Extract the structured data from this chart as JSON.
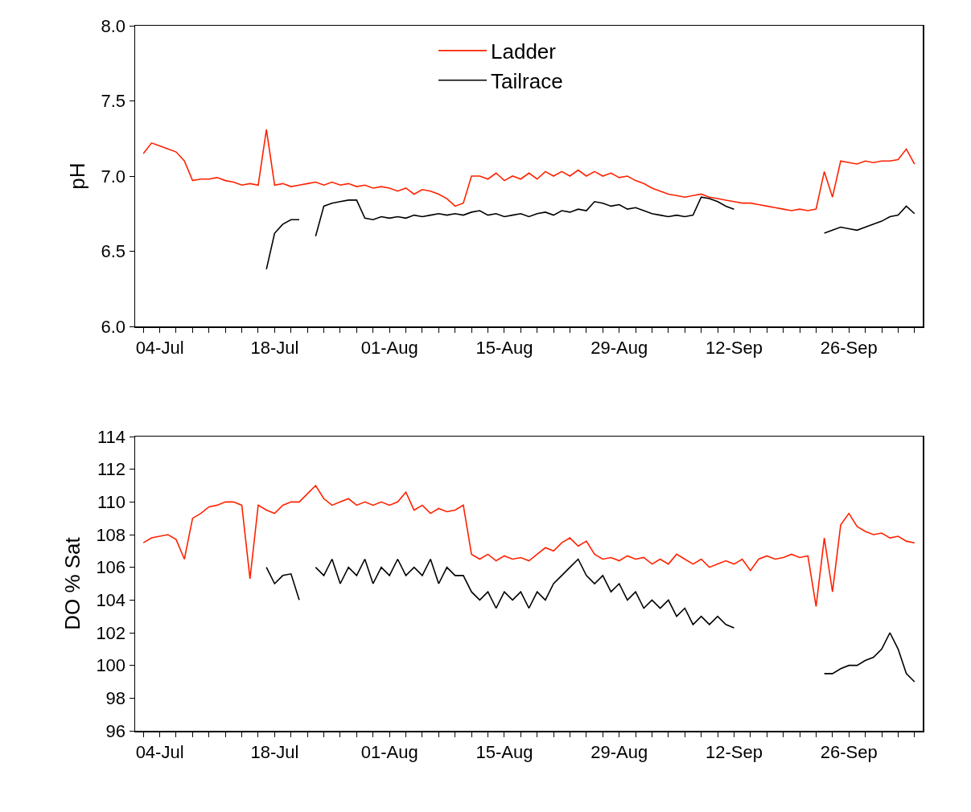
{
  "chart_data": [
    {
      "type": "line",
      "ylabel": "pH",
      "legend": "top",
      "line_style": "solid",
      "marker": "none",
      "x": [
        "--07-02",
        "--07-03",
        "--07-04",
        "--07-05",
        "--07-06",
        "--07-07",
        "--07-08",
        "--07-09",
        "--07-10",
        "--07-11",
        "--07-12",
        "--07-13",
        "--07-14",
        "--07-15",
        "--07-16",
        "--07-17",
        "--07-18",
        "--07-19",
        "--07-20",
        "--07-21",
        "--07-22",
        "--07-23",
        "--07-24",
        "--07-25",
        "--07-26",
        "--07-27",
        "--07-28",
        "--07-29",
        "--07-30",
        "--07-31",
        "--08-01",
        "--08-02",
        "--08-03",
        "--08-04",
        "--08-05",
        "--08-06",
        "--08-07",
        "--08-08",
        "--08-09",
        "--08-10",
        "--08-11",
        "--08-12",
        "--08-13",
        "--08-14",
        "--08-15",
        "--08-16",
        "--08-17",
        "--08-18",
        "--08-19",
        "--08-20",
        "--08-21",
        "--08-22",
        "--08-23",
        "--08-24",
        "--08-25",
        "--08-26",
        "--08-27",
        "--08-28",
        "--08-29",
        "--08-30",
        "--08-31",
        "--09-01",
        "--09-02",
        "--09-03",
        "--09-04",
        "--09-05",
        "--09-06",
        "--09-07",
        "--09-08",
        "--09-09",
        "--09-10",
        "--09-11",
        "--09-12",
        "--09-13",
        "--09-14",
        "--09-15",
        "--09-16",
        "--09-17",
        "--09-18",
        "--09-19",
        "--09-20",
        "--09-21",
        "--09-22",
        "--09-23",
        "--09-24",
        "--09-25",
        "--09-26",
        "--09-27",
        "--09-28",
        "--09-29",
        "--09-30",
        "--10-01",
        "--10-02",
        "--10-03",
        "--10-04"
      ],
      "series": [
        {
          "name": "Ladder",
          "color": "#ff2200",
          "values": [
            7.15,
            7.22,
            7.2,
            7.18,
            7.16,
            7.1,
            6.97,
            6.98,
            6.98,
            6.99,
            6.97,
            6.96,
            6.94,
            6.95,
            6.94,
            7.31,
            6.94,
            6.95,
            6.93,
            6.94,
            6.95,
            6.96,
            6.94,
            6.96,
            6.94,
            6.95,
            6.93,
            6.94,
            6.92,
            6.93,
            6.92,
            6.9,
            6.92,
            6.88,
            6.91,
            6.9,
            6.88,
            6.85,
            6.8,
            6.82,
            7.0,
            7.0,
            6.98,
            7.02,
            6.97,
            7.0,
            6.98,
            7.02,
            6.98,
            7.03,
            7.0,
            7.03,
            7.0,
            7.04,
            7.0,
            7.03,
            7.0,
            7.02,
            6.99,
            7.0,
            6.97,
            6.95,
            6.92,
            6.9,
            6.88,
            6.87,
            6.86,
            6.87,
            6.88,
            6.86,
            6.85,
            6.84,
            6.83,
            6.82,
            6.82,
            6.81,
            6.8,
            6.79,
            6.78,
            6.77,
            6.78,
            6.77,
            6.78,
            7.03,
            6.86,
            7.1,
            7.09,
            7.08,
            7.1,
            7.09,
            7.1,
            7.1,
            7.11,
            7.18,
            7.08
          ]
        },
        {
          "name": "Tailrace",
          "color": "#000000",
          "values": [
            null,
            null,
            null,
            null,
            null,
            null,
            null,
            null,
            null,
            null,
            null,
            null,
            null,
            null,
            null,
            6.38,
            6.62,
            6.68,
            6.71,
            6.71,
            null,
            6.6,
            6.8,
            6.82,
            6.83,
            6.84,
            6.84,
            6.72,
            6.71,
            6.73,
            6.72,
            6.73,
            6.72,
            6.74,
            6.73,
            6.74,
            6.75,
            6.74,
            6.75,
            6.74,
            6.76,
            6.77,
            6.74,
            6.75,
            6.73,
            6.74,
            6.75,
            6.73,
            6.75,
            6.76,
            6.74,
            6.77,
            6.76,
            6.78,
            6.77,
            6.83,
            6.82,
            6.8,
            6.81,
            6.78,
            6.79,
            6.77,
            6.75,
            6.74,
            6.73,
            6.74,
            6.73,
            6.74,
            6.86,
            6.85,
            6.83,
            6.8,
            6.78,
            null,
            null,
            null,
            null,
            null,
            null,
            null,
            null,
            null,
            null,
            6.62,
            6.64,
            6.66,
            6.65,
            6.64,
            6.66,
            6.68,
            6.7,
            6.73,
            6.74,
            6.8,
            6.75
          ]
        }
      ],
      "xlim": [
        "--07-01",
        "--10-05"
      ],
      "xticks": [
        {
          "value": "--07-02",
          "label": null
        },
        {
          "value": "--07-04",
          "label": "04-Jul"
        },
        {
          "value": "--07-06",
          "label": null
        },
        {
          "value": "--07-08",
          "label": null
        },
        {
          "value": "--07-10",
          "label": null
        },
        {
          "value": "--07-12",
          "label": null
        },
        {
          "value": "--07-14",
          "label": null
        },
        {
          "value": "--07-16",
          "label": null
        },
        {
          "value": "--07-18",
          "label": "18-Jul"
        },
        {
          "value": "--07-20",
          "label": null
        },
        {
          "value": "--07-22",
          "label": null
        },
        {
          "value": "--07-24",
          "label": null
        },
        {
          "value": "--07-26",
          "label": null
        },
        {
          "value": "--07-28",
          "label": null
        },
        {
          "value": "--07-30",
          "label": null
        },
        {
          "value": "--08-01",
          "label": "01-Aug"
        },
        {
          "value": "--08-03",
          "label": null
        },
        {
          "value": "--08-05",
          "label": null
        },
        {
          "value": "--08-07",
          "label": null
        },
        {
          "value": "--08-09",
          "label": null
        },
        {
          "value": "--08-11",
          "label": null
        },
        {
          "value": "--08-13",
          "label": null
        },
        {
          "value": "--08-15",
          "label": "15-Aug"
        },
        {
          "value": "--08-17",
          "label": null
        },
        {
          "value": "--08-19",
          "label": null
        },
        {
          "value": "--08-21",
          "label": null
        },
        {
          "value": "--08-23",
          "label": null
        },
        {
          "value": "--08-25",
          "label": null
        },
        {
          "value": "--08-27",
          "label": null
        },
        {
          "value": "--08-29",
          "label": "29-Aug"
        },
        {
          "value": "--08-31",
          "label": null
        },
        {
          "value": "--09-02",
          "label": null
        },
        {
          "value": "--09-04",
          "label": null
        },
        {
          "value": "--09-06",
          "label": null
        },
        {
          "value": "--09-08",
          "label": null
        },
        {
          "value": "--09-10",
          "label": null
        },
        {
          "value": "--09-12",
          "label": "12-Sep"
        },
        {
          "value": "--09-14",
          "label": null
        },
        {
          "value": "--09-16",
          "label": null
        },
        {
          "value": "--09-18",
          "label": null
        },
        {
          "value": "--09-20",
          "label": null
        },
        {
          "value": "--09-22",
          "label": null
        },
        {
          "value": "--09-24",
          "label": null
        },
        {
          "value": "--09-26",
          "label": "26-Sep"
        },
        {
          "value": "--09-28",
          "label": null
        },
        {
          "value": "--09-30",
          "label": null
        },
        {
          "value": "--10-02",
          "label": null
        },
        {
          "value": "--10-04",
          "label": null
        }
      ],
      "ylim": [
        6,
        8
      ],
      "yticks": [
        {
          "value": 6,
          "label": "6.0"
        },
        {
          "value": 6.5,
          "label": "6.5"
        },
        {
          "value": 7,
          "label": "7.0"
        },
        {
          "value": 7.5,
          "label": "7.5"
        },
        {
          "value": 8,
          "label": "8.0"
        }
      ]
    },
    {
      "type": "line",
      "ylabel": "DO % Sat",
      "line_style": "solid",
      "marker": "none",
      "x": [
        "--07-02",
        "--07-03",
        "--07-04",
        "--07-05",
        "--07-06",
        "--07-07",
        "--07-08",
        "--07-09",
        "--07-10",
        "--07-11",
        "--07-12",
        "--07-13",
        "--07-14",
        "--07-15",
        "--07-16",
        "--07-17",
        "--07-18",
        "--07-19",
        "--07-20",
        "--07-21",
        "--07-22",
        "--07-23",
        "--07-24",
        "--07-25",
        "--07-26",
        "--07-27",
        "--07-28",
        "--07-29",
        "--07-30",
        "--07-31",
        "--08-01",
        "--08-02",
        "--08-03",
        "--08-04",
        "--08-05",
        "--08-06",
        "--08-07",
        "--08-08",
        "--08-09",
        "--08-10",
        "--08-11",
        "--08-12",
        "--08-13",
        "--08-14",
        "--08-15",
        "--08-16",
        "--08-17",
        "--08-18",
        "--08-19",
        "--08-20",
        "--08-21",
        "--08-22",
        "--08-23",
        "--08-24",
        "--08-25",
        "--08-26",
        "--08-27",
        "--08-28",
        "--08-29",
        "--08-30",
        "--08-31",
        "--09-01",
        "--09-02",
        "--09-03",
        "--09-04",
        "--09-05",
        "--09-06",
        "--09-07",
        "--09-08",
        "--09-09",
        "--09-10",
        "--09-11",
        "--09-12",
        "--09-13",
        "--09-14",
        "--09-15",
        "--09-16",
        "--09-17",
        "--09-18",
        "--09-19",
        "--09-20",
        "--09-21",
        "--09-22",
        "--09-23",
        "--09-24",
        "--09-25",
        "--09-26",
        "--09-27",
        "--09-28",
        "--09-29",
        "--09-30",
        "--10-01",
        "--10-02",
        "--10-03",
        "--10-04"
      ],
      "series": [
        {
          "color": "#ff2200",
          "values": [
            107.5,
            107.8,
            107.9,
            108,
            107.7,
            106.5,
            109,
            109.3,
            109.7,
            109.8,
            110,
            110,
            109.8,
            105.3,
            109.8,
            109.5,
            109.3,
            109.8,
            110,
            110,
            110.5,
            111,
            110.2,
            109.8,
            110,
            110.2,
            109.8,
            110,
            109.8,
            110,
            109.8,
            110,
            110.6,
            109.5,
            109.8,
            109.3,
            109.6,
            109.4,
            109.5,
            109.8,
            106.8,
            106.5,
            106.8,
            106.4,
            106.7,
            106.5,
            106.6,
            106.4,
            106.8,
            107.2,
            107,
            107.5,
            107.8,
            107.3,
            107.6,
            106.8,
            106.5,
            106.6,
            106.4,
            106.7,
            106.5,
            106.6,
            106.2,
            106.5,
            106.2,
            106.8,
            106.5,
            106.2,
            106.5,
            106,
            106.2,
            106.4,
            106.2,
            106.5,
            105.8,
            106.5,
            106.7,
            106.5,
            106.6,
            106.8,
            106.6,
            106.7,
            103.6,
            107.8,
            104.5,
            108.6,
            109.3,
            108.5,
            108.2,
            108,
            108.1,
            107.8,
            107.9,
            107.6,
            107.5
          ]
        },
        {
          "color": "#000000",
          "values": [
            null,
            null,
            null,
            null,
            null,
            null,
            null,
            null,
            null,
            null,
            null,
            null,
            null,
            null,
            null,
            106,
            105,
            105.5,
            105.6,
            104,
            null,
            106,
            105.5,
            106.5,
            105,
            106,
            105.5,
            106.5,
            105,
            106,
            105.5,
            106.5,
            105.5,
            106,
            105.5,
            106.5,
            105,
            106,
            105.5,
            105.5,
            104.5,
            104,
            104.5,
            103.5,
            104.5,
            104,
            104.5,
            103.5,
            104.5,
            104,
            105,
            105.5,
            106,
            106.5,
            105.5,
            105,
            105.5,
            104.5,
            105,
            104,
            104.5,
            103.5,
            104,
            103.5,
            104,
            103,
            103.5,
            102.5,
            103,
            102.5,
            103,
            102.5,
            102.3,
            null,
            null,
            null,
            null,
            null,
            null,
            null,
            null,
            null,
            null,
            99.5,
            99.5,
            99.8,
            100,
            100,
            100.3,
            100.5,
            101,
            102,
            101,
            99.5,
            99
          ]
        }
      ],
      "xlim": [
        "--07-01",
        "--10-05"
      ],
      "xticks": [
        {
          "value": "--07-02",
          "label": null
        },
        {
          "value": "--07-04",
          "label": "04-Jul"
        },
        {
          "value": "--07-06",
          "label": null
        },
        {
          "value": "--07-08",
          "label": null
        },
        {
          "value": "--07-10",
          "label": null
        },
        {
          "value": "--07-12",
          "label": null
        },
        {
          "value": "--07-14",
          "label": null
        },
        {
          "value": "--07-16",
          "label": null
        },
        {
          "value": "--07-18",
          "label": "18-Jul"
        },
        {
          "value": "--07-20",
          "label": null
        },
        {
          "value": "--07-22",
          "label": null
        },
        {
          "value": "--07-24",
          "label": null
        },
        {
          "value": "--07-26",
          "label": null
        },
        {
          "value": "--07-28",
          "label": null
        },
        {
          "value": "--07-30",
          "label": null
        },
        {
          "value": "--08-01",
          "label": "01-Aug"
        },
        {
          "value": "--08-03",
          "label": null
        },
        {
          "value": "--08-05",
          "label": null
        },
        {
          "value": "--08-07",
          "label": null
        },
        {
          "value": "--08-09",
          "label": null
        },
        {
          "value": "--08-11",
          "label": null
        },
        {
          "value": "--08-13",
          "label": null
        },
        {
          "value": "--08-15",
          "label": "15-Aug"
        },
        {
          "value": "--08-17",
          "label": null
        },
        {
          "value": "--08-19",
          "label": null
        },
        {
          "value": "--08-21",
          "label": null
        },
        {
          "value": "--08-23",
          "label": null
        },
        {
          "value": "--08-25",
          "label": null
        },
        {
          "value": "--08-27",
          "label": null
        },
        {
          "value": "--08-29",
          "label": "29-Aug"
        },
        {
          "value": "--08-31",
          "label": null
        },
        {
          "value": "--09-02",
          "label": null
        },
        {
          "value": "--09-04",
          "label": null
        },
        {
          "value": "--09-06",
          "label": null
        },
        {
          "value": "--09-08",
          "label": null
        },
        {
          "value": "--09-10",
          "label": null
        },
        {
          "value": "--09-12",
          "label": "12-Sep"
        },
        {
          "value": "--09-14",
          "label": null
        },
        {
          "value": "--09-16",
          "label": null
        },
        {
          "value": "--09-18",
          "label": null
        },
        {
          "value": "--09-20",
          "label": null
        },
        {
          "value": "--09-22",
          "label": null
        },
        {
          "value": "--09-24",
          "label": null
        },
        {
          "value": "--09-26",
          "label": "26-Sep"
        },
        {
          "value": "--09-28",
          "label": null
        },
        {
          "value": "--09-30",
          "label": null
        },
        {
          "value": "--10-02",
          "label": null
        },
        {
          "value": "--10-04",
          "label": null
        }
      ],
      "ylim": [
        96,
        114
      ],
      "yticks": [
        96,
        98,
        100,
        102,
        104,
        106,
        108,
        110,
        112,
        114
      ]
    }
  ]
}
